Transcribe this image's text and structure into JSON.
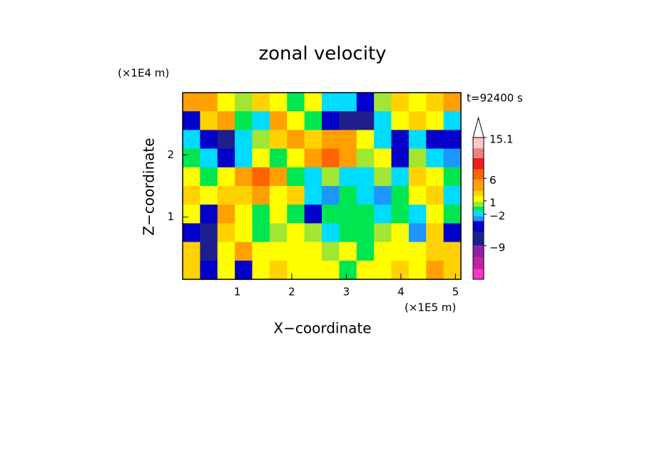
{
  "chart_data": {
    "type": "contour",
    "title": "zonal velocity",
    "x_label": "X−coordinate",
    "y_label": "Z−coordinate",
    "x_unit": "(×1E5 m)",
    "y_unit": "(×1E4 m)",
    "annotation": "t=92400 s",
    "xlim": [
      0,
      5.1
    ],
    "ylim": [
      0,
      3
    ],
    "xticks": [
      1,
      2,
      3,
      4,
      5
    ],
    "yticks": [
      1,
      2
    ],
    "z": [
      [
        4.5,
        4.5,
        1.5,
        0.5,
        2.5,
        1.5,
        -0.5,
        1.5,
        -1.5,
        -1.5,
        -4.5,
        0.5,
        2.5,
        1.5,
        2.5,
        4.5
      ],
      [
        -4.5,
        2.5,
        4.5,
        -0.5,
        -1.5,
        4.5,
        1.5,
        -0.5,
        -4.5,
        -7.5,
        -7.5,
        -1.5,
        1.5,
        2.5,
        1.5,
        -1.5
      ],
      [
        -1.5,
        -4.5,
        -7.5,
        -1.5,
        0.5,
        2.5,
        4.5,
        2.5,
        4.5,
        4.5,
        1.5,
        -1.5,
        -4.5,
        -1.5,
        -4.5,
        -4.5
      ],
      [
        -0.5,
        -1.5,
        -4.5,
        -1.5,
        1.5,
        -0.5,
        1.5,
        4.5,
        7,
        4.5,
        0.5,
        1.5,
        -4.5,
        0.5,
        -1.5,
        -2.5
      ],
      [
        1.5,
        -0.5,
        1.5,
        4.5,
        7,
        4.5,
        -0.5,
        -1.5,
        0.5,
        -1.5,
        -1.5,
        0.5,
        -1.5,
        2.5,
        1.5,
        -0.5
      ],
      [
        2.5,
        1.5,
        2.5,
        2.5,
        4.5,
        1.5,
        2.5,
        -1.5,
        -2.5,
        -0.5,
        -1.5,
        -2.5,
        -0.5,
        1.5,
        2.5,
        -1.5
      ],
      [
        1.5,
        -4.5,
        4.5,
        1.5,
        -0.5,
        1.5,
        -0.5,
        -4.5,
        -0.5,
        -0.5,
        -0.5,
        -1.5,
        -0.5,
        -1.5,
        1.5,
        -0.5
      ],
      [
        -4.5,
        -7.5,
        2.5,
        1.5,
        -0.5,
        0.5,
        1.5,
        0.5,
        -1.5,
        -0.5,
        -0.5,
        0.5,
        1.5,
        -2.5,
        2.5,
        -4.5
      ],
      [
        2.5,
        -7.5,
        1.5,
        4.5,
        1.5,
        1.5,
        1.5,
        1.5,
        0.5,
        1.5,
        -0.5,
        1.5,
        1.5,
        1.5,
        2.5,
        2.5
      ],
      [
        2.5,
        -4.5,
        1.5,
        -4.5,
        1.5,
        2.5,
        1.5,
        1.5,
        1.5,
        -0.5,
        1.5,
        1.5,
        2.5,
        1.5,
        4.5,
        2.5
      ]
    ],
    "colorbar": {
      "levels": [
        -16.5,
        -14.3,
        -11.7,
        -9,
        -6,
        -3.5,
        -2.4,
        -1.2,
        -0.3,
        0.8,
        2.1,
        3.2,
        5.7,
        8,
        10.5,
        12.7,
        15.1
      ],
      "colors": [
        "#ff32c8",
        "#c81eaa",
        "#961ea0",
        "#1e1e8c",
        "#0000c8",
        "#1e96ff",
        "#00dcff",
        "#00e650",
        "#a0e632",
        "#ffff00",
        "#ffd200",
        "#ffa000",
        "#ff6400",
        "#f01e1e",
        "#f08080",
        "#ffc8c8"
      ],
      "ticks": [
        15.1,
        6,
        1,
        {
          "value": -2,
          "label": "−2"
        },
        {
          "value": -9,
          "label": "−9"
        }
      ]
    }
  }
}
